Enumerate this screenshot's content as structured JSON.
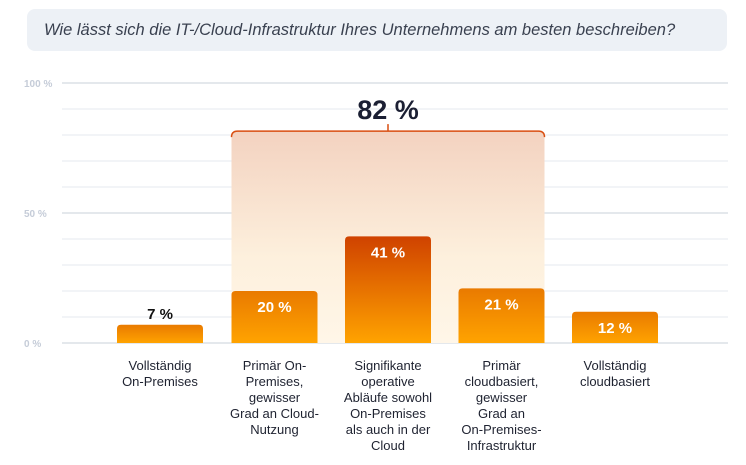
{
  "title": "Wie lässt sich die IT-/Cloud-Infrastruktur Ihres Unternehmens am besten beschreiben?",
  "chart_data": {
    "type": "bar",
    "title": "Wie lässt sich die IT-/Cloud-Infrastruktur Ihres Unternehmens am besten beschreiben?",
    "categories": [
      "Vollständig On-Premises",
      "Primär On-Premises, gewisser Grad an Cloud-Nutzung",
      "Signifikante operative Abläufe sowohl On-Premises als auch in der Cloud",
      "Primär cloudbasiert, gewisser Grad an On-Premises-Infrastruktur",
      "Vollständig cloudbasiert"
    ],
    "category_lines": [
      [
        "Vollständig",
        "On-Premises"
      ],
      [
        "Primär On-",
        "Premises,",
        "gewisser",
        "Grad an Cloud-",
        "Nutzung"
      ],
      [
        "Signifikante",
        "operative",
        "Abläufe sowohl",
        "On-Premises",
        "als auch in der",
        "Cloud"
      ],
      [
        "Primär",
        "cloudbasiert,",
        "gewisser",
        "Grad an",
        "On-Premises-",
        "Infrastruktur"
      ],
      [
        "Vollständig",
        "cloudbasiert"
      ]
    ],
    "values": [
      7,
      20,
      41,
      21,
      12
    ],
    "value_labels": [
      "7 %",
      "20 %",
      "41 %",
      "21 %",
      "12 %"
    ],
    "ylim": [
      0,
      100
    ],
    "yticks": [
      0,
      50,
      100
    ],
    "ytick_labels": [
      "0 %",
      "50 %",
      "100 %"
    ],
    "grid": true,
    "annotation": {
      "label": "82 %",
      "value": 82,
      "spans_categories": [
        1,
        3
      ]
    },
    "colors": {
      "bar_top": "#e87a00",
      "bar_bottom": "#ffa200",
      "bar_peak_top": "#cf4200",
      "bracket": "#d94e10",
      "grid": "#e6e9ef",
      "axis_label": "#c5ccd8"
    }
  }
}
